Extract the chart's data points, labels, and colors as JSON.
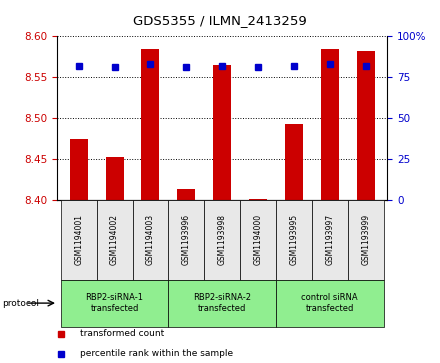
{
  "title": "GDS5355 / ILMN_2413259",
  "samples": [
    "GSM1194001",
    "GSM1194002",
    "GSM1194003",
    "GSM1193996",
    "GSM1193998",
    "GSM1194000",
    "GSM1193995",
    "GSM1193997",
    "GSM1193999"
  ],
  "red_values": [
    8.474,
    8.452,
    8.585,
    8.413,
    8.565,
    8.401,
    8.493,
    8.585,
    8.582
  ],
  "blue_values": [
    82,
    81,
    83,
    81,
    82,
    81,
    82,
    83,
    82
  ],
  "ylim_left": [
    8.4,
    8.6
  ],
  "ylim_right": [
    0,
    100
  ],
  "yticks_left": [
    8.4,
    8.45,
    8.5,
    8.55,
    8.6
  ],
  "yticks_right": [
    0,
    25,
    50,
    75,
    100
  ],
  "groups": [
    {
      "label": "RBP2-siRNA-1\ntransfected",
      "start": 0,
      "end": 3,
      "color": "#90ee90"
    },
    {
      "label": "RBP2-siRNA-2\ntransfected",
      "start": 3,
      "end": 6,
      "color": "#90ee90"
    },
    {
      "label": "control siRNA\ntransfected",
      "start": 6,
      "end": 9,
      "color": "#90ee90"
    }
  ],
  "protocol_label": "protocol",
  "bar_color": "#cc0000",
  "dot_color": "#0000cc",
  "baseline": 8.4,
  "bar_width": 0.5,
  "tick_color_left": "#cc0000",
  "tick_color_right": "#0000cc",
  "bg_color": "#e8e8e8",
  "legend_red": "transformed count",
  "legend_blue": "percentile rank within the sample"
}
